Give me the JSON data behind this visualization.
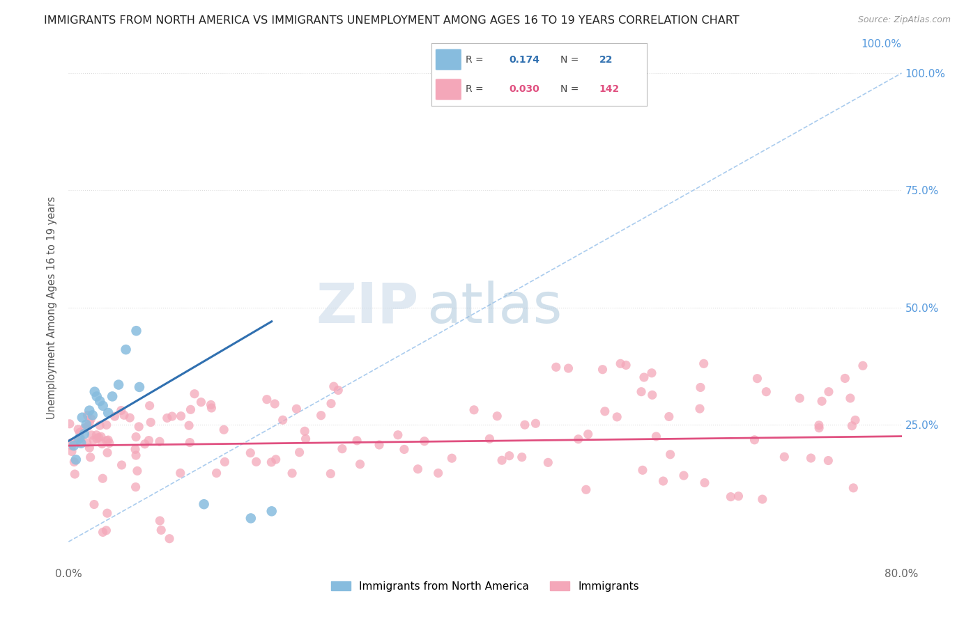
{
  "title": "IMMIGRANTS FROM NORTH AMERICA VS IMMIGRANTS UNEMPLOYMENT AMONG AGES 16 TO 19 YEARS CORRELATION CHART",
  "source": "Source: ZipAtlas.com",
  "ylabel": "Unemployment Among Ages 16 to 19 years",
  "xlim": [
    0.0,
    0.8
  ],
  "ylim": [
    -0.05,
    1.05
  ],
  "xticks": [
    0.0,
    0.2,
    0.4,
    0.6,
    0.8
  ],
  "xtick_labels": [
    "0.0%",
    "",
    "",
    "",
    "80.0%"
  ],
  "ytick_labels": [
    "100.0%",
    "75.0%",
    "50.0%",
    "25.0%"
  ],
  "ytick_positions": [
    1.0,
    0.75,
    0.5,
    0.25
  ],
  "legend_R1": "0.174",
  "legend_N1": "22",
  "legend_R2": "0.030",
  "legend_N2": "142",
  "color_blue": "#87BCDE",
  "color_pink": "#F4A7B9",
  "color_blue_line": "#3070B0",
  "color_pink_line": "#E05080",
  "color_dashed": "#AACCEE",
  "color_grid": "#DDDDDD",
  "blue_scatter_x": [
    0.005,
    0.007,
    0.01,
    0.012,
    0.013,
    0.015,
    0.017,
    0.02,
    0.023,
    0.025,
    0.027,
    0.03,
    0.033,
    0.038,
    0.042,
    0.048,
    0.055,
    0.065,
    0.068,
    0.13,
    0.175,
    0.195
  ],
  "blue_scatter_y": [
    0.205,
    0.175,
    0.22,
    0.21,
    0.265,
    0.23,
    0.25,
    0.28,
    0.27,
    0.32,
    0.31,
    0.3,
    0.29,
    0.275,
    0.31,
    0.335,
    0.41,
    0.45,
    0.33,
    0.08,
    0.05,
    0.065
  ],
  "blue_line_x": [
    0.0,
    0.195
  ],
  "blue_line_y": [
    0.215,
    0.47
  ],
  "pink_line_x": [
    0.0,
    0.8
  ],
  "pink_line_y": [
    0.205,
    0.225
  ],
  "dashed_line_x": [
    0.0,
    0.8
  ],
  "dashed_line_y": [
    0.0,
    1.0
  ],
  "watermark_zip": "ZIP",
  "watermark_atlas": "atlas",
  "bottom_legend_labels": [
    "Immigrants from North America",
    "Immigrants"
  ]
}
